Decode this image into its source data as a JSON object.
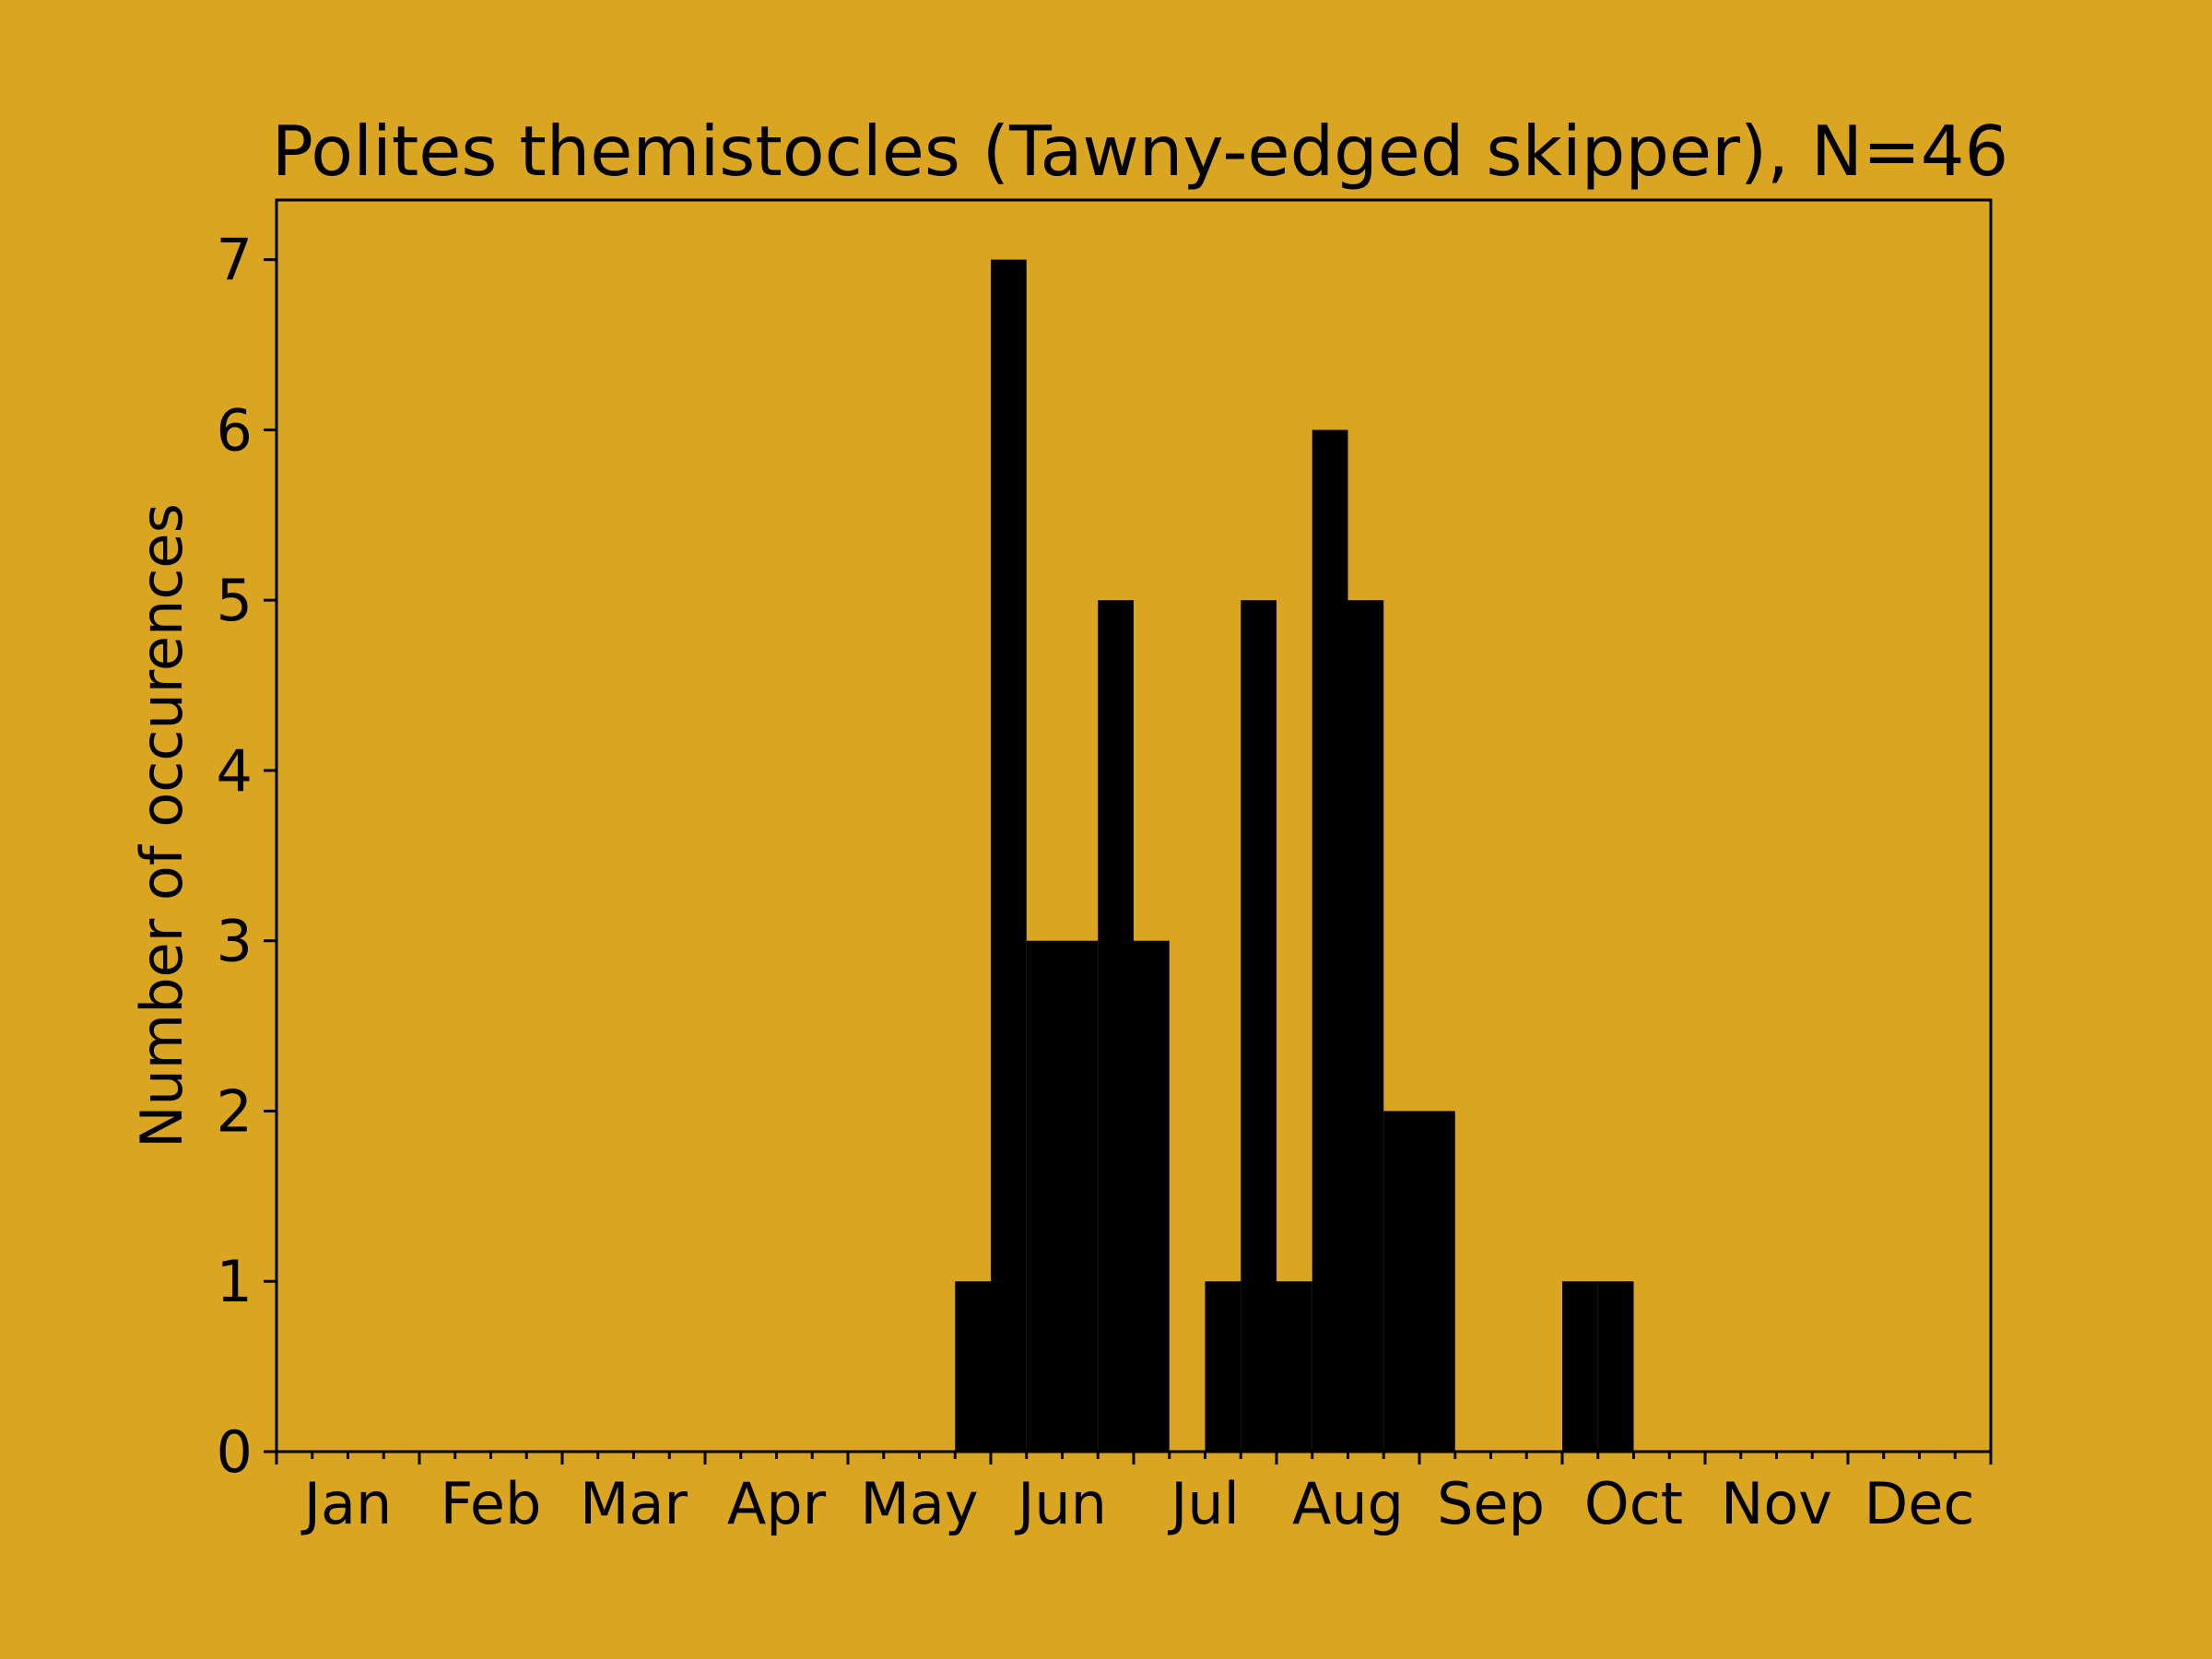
{
  "chart_data": {
    "type": "bar",
    "title": "Polites themistocles (Tawny-edged skipper), N=46",
    "xlabel": "",
    "ylabel": "Number of occurences",
    "x_range": [
      0,
      48
    ],
    "ylim": [
      0,
      7.35
    ],
    "y_ticks": [
      0,
      1,
      2,
      3,
      4,
      5,
      6,
      7
    ],
    "month_labels": [
      "Jan",
      "Feb",
      "Mar",
      "Apr",
      "May",
      "Jun",
      "Jul",
      "Aug",
      "Sep",
      "Oct",
      "Nov",
      "Dec"
    ],
    "bins": [
      {
        "start": 19,
        "end": 20,
        "value": 1
      },
      {
        "start": 20,
        "end": 21,
        "value": 7
      },
      {
        "start": 21,
        "end": 22,
        "value": 3
      },
      {
        "start": 22,
        "end": 23,
        "value": 3
      },
      {
        "start": 23,
        "end": 24,
        "value": 5
      },
      {
        "start": 24,
        "end": 25,
        "value": 3
      },
      {
        "start": 26,
        "end": 27,
        "value": 1
      },
      {
        "start": 27,
        "end": 28,
        "value": 5
      },
      {
        "start": 28,
        "end": 29,
        "value": 1
      },
      {
        "start": 29,
        "end": 30,
        "value": 6
      },
      {
        "start": 30,
        "end": 31,
        "value": 5
      },
      {
        "start": 31,
        "end": 32,
        "value": 2
      },
      {
        "start": 32,
        "end": 33,
        "value": 2
      },
      {
        "start": 36,
        "end": 37,
        "value": 1
      },
      {
        "start": 37,
        "end": 38,
        "value": 1
      }
    ],
    "grid": false,
    "bar_color": "#000000",
    "background_color": "#DAA520"
  }
}
